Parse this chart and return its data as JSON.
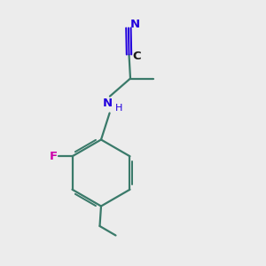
{
  "background_color": "#ececec",
  "bond_color": "#3a7a6a",
  "nitrogen_color": "#2200dd",
  "fluorine_color": "#cc00aa",
  "triple_bond_color": "#2200dd",
  "bond_lw": 1.6,
  "figsize": [
    3.0,
    3.0
  ],
  "dpi": 100,
  "atoms": {
    "N_label": "N",
    "H_label": "H",
    "F_label": "F",
    "C_nitrile_label": "C",
    "N_nitrile_label": "N"
  }
}
